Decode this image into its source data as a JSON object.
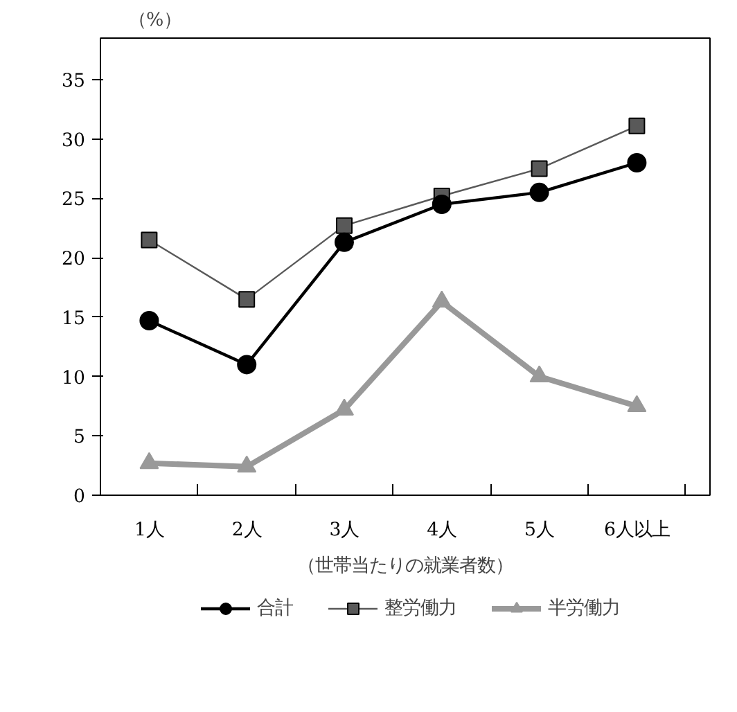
{
  "chart_data": {
    "type": "line",
    "ylabel": "（%）",
    "xlabel": "（世帯当たりの就業者数）",
    "categories": [
      "1人",
      "2人",
      "3人",
      "4人",
      "5人",
      "6人以上"
    ],
    "series": [
      {
        "name": "合計",
        "color": "#000000",
        "marker": "circle",
        "values": [
          14.7,
          11.0,
          21.3,
          24.5,
          25.5,
          28.0
        ]
      },
      {
        "name": "整労働力",
        "color": "#595959",
        "marker": "square",
        "values": [
          21.5,
          16.5,
          22.7,
          25.2,
          27.5,
          31.1
        ]
      },
      {
        "name": "半労働力",
        "color": "#999999",
        "marker": "triangle",
        "values": [
          2.7,
          2.4,
          7.2,
          16.3,
          10.0,
          7.5
        ]
      }
    ],
    "ylim": [
      0,
      38.5
    ],
    "yticks": [
      0,
      5,
      10,
      15,
      20,
      25,
      30,
      35
    ],
    "grid": false,
    "legend": "bottom"
  }
}
